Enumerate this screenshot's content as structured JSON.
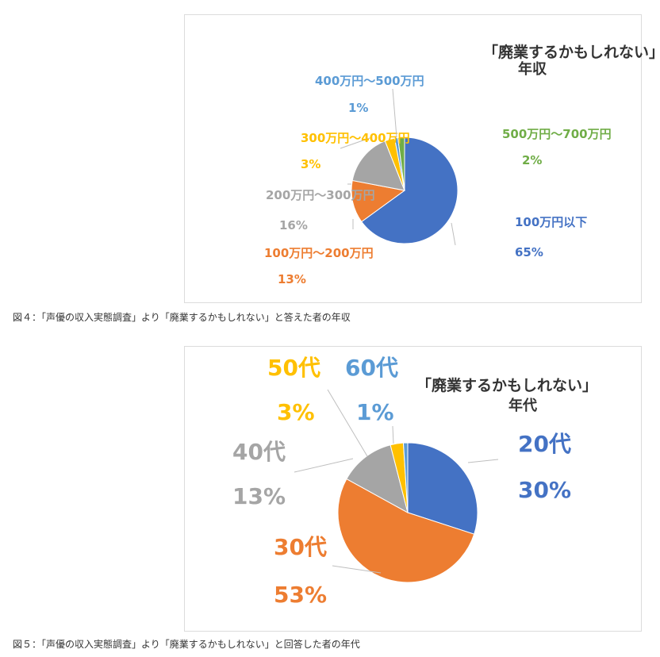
{
  "figures": [
    {
      "caption": "図４：「声優の収入実態調査」より「廃業するかもしれない」と答えた者の年収",
      "chart_data": {
        "type": "pie",
        "title": "「廃業するかもしれない」",
        "subtitle": "年収",
        "slices": [
          {
            "label": "100万円以下",
            "value": 65,
            "percent_label": "65%",
            "color": "#4472C4"
          },
          {
            "label": "100万円～200万円",
            "value": 13,
            "percent_label": "13%",
            "color": "#ED7D31"
          },
          {
            "label": "200万円～300万円",
            "value": 16,
            "percent_label": "16%",
            "color": "#A5A5A5"
          },
          {
            "label": "300万円～400万円",
            "value": 3,
            "percent_label": "3%",
            "color": "#FFC000"
          },
          {
            "label": "400万円～500万円",
            "value": 1,
            "percent_label": "1%",
            "color": "#5B9BD5"
          },
          {
            "label": "500万円～700万円",
            "value": 2,
            "percent_label": "2%",
            "color": "#70AD47"
          }
        ]
      }
    },
    {
      "caption": "図５：「声優の収入実態調査」より「廃業するかもしれない」と回答した者の年代",
      "chart_data": {
        "type": "pie",
        "title": "「廃業するかもしれない」",
        "subtitle": "年代",
        "slices": [
          {
            "label": "20代",
            "value": 30,
            "percent_label": "30%",
            "color": "#4472C4"
          },
          {
            "label": "30代",
            "value": 53,
            "percent_label": "53%",
            "color": "#ED7D31"
          },
          {
            "label": "40代",
            "value": 13,
            "percent_label": "13%",
            "color": "#A5A5A5"
          },
          {
            "label": "50代",
            "value": 3,
            "percent_label": "3%",
            "color": "#FFC000"
          },
          {
            "label": "60代",
            "value": 1,
            "percent_label": "1%",
            "color": "#5B9BD5"
          }
        ]
      }
    }
  ]
}
